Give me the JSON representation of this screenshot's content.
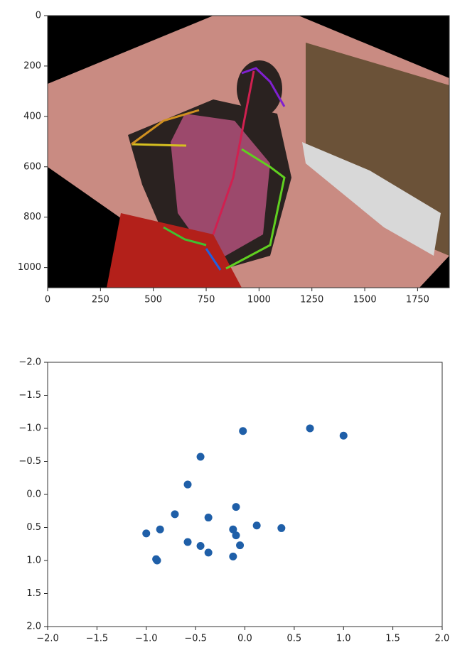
{
  "chart_data": [
    {
      "type": "image",
      "xlim": [
        0,
        1900
      ],
      "xticks": [
        0,
        250,
        500,
        750,
        1000,
        1250,
        1500,
        1750
      ],
      "ylim": [
        1080,
        0
      ],
      "yticks": [
        0,
        200,
        400,
        600,
        800,
        1000
      ]
    },
    {
      "type": "scatter",
      "color": "#1f5fa8",
      "x": [
        -0.02,
        0.66,
        1.0,
        -0.45,
        -0.58,
        -0.71,
        -0.37,
        -0.09,
        0.12,
        0.37,
        -1.0,
        -0.86,
        -0.12,
        -0.09,
        -0.58,
        -0.45,
        -0.05,
        -0.37,
        -0.9,
        -0.89,
        -0.12
      ],
      "values": [
        -0.96,
        -1.0,
        -0.89,
        -0.57,
        -0.15,
        0.3,
        0.35,
        0.19,
        0.47,
        0.51,
        0.59,
        0.53,
        0.53,
        0.62,
        0.72,
        0.78,
        0.77,
        0.88,
        0.98,
        1.0,
        0.94
      ],
      "xlim": [
        -2,
        2
      ],
      "xticks": [
        {
          "value": -2,
          "label": "−2.0"
        },
        {
          "value": -1.5,
          "label": "−1.5"
        },
        {
          "value": -1,
          "label": "−1.0"
        },
        {
          "value": -0.5,
          "label": "−0.5"
        },
        {
          "value": 0,
          "label": "0.0"
        },
        0.5,
        {
          "value": 1,
          "label": "1.0"
        },
        1.5,
        {
          "value": 2,
          "label": "2.0"
        }
      ],
      "ylim": [
        2,
        -2
      ],
      "yticks": [
        {
          "value": -2,
          "label": "−2.0"
        },
        {
          "value": -1.5,
          "label": "−1.5"
        },
        {
          "value": -1,
          "label": "−1.0"
        },
        {
          "value": -0.5,
          "label": "−0.5"
        },
        {
          "value": 0,
          "label": "0.0"
        },
        0.5,
        {
          "value": 1,
          "label": "1.0"
        },
        1.5,
        {
          "value": 2,
          "label": "2.0"
        }
      ]
    }
  ]
}
